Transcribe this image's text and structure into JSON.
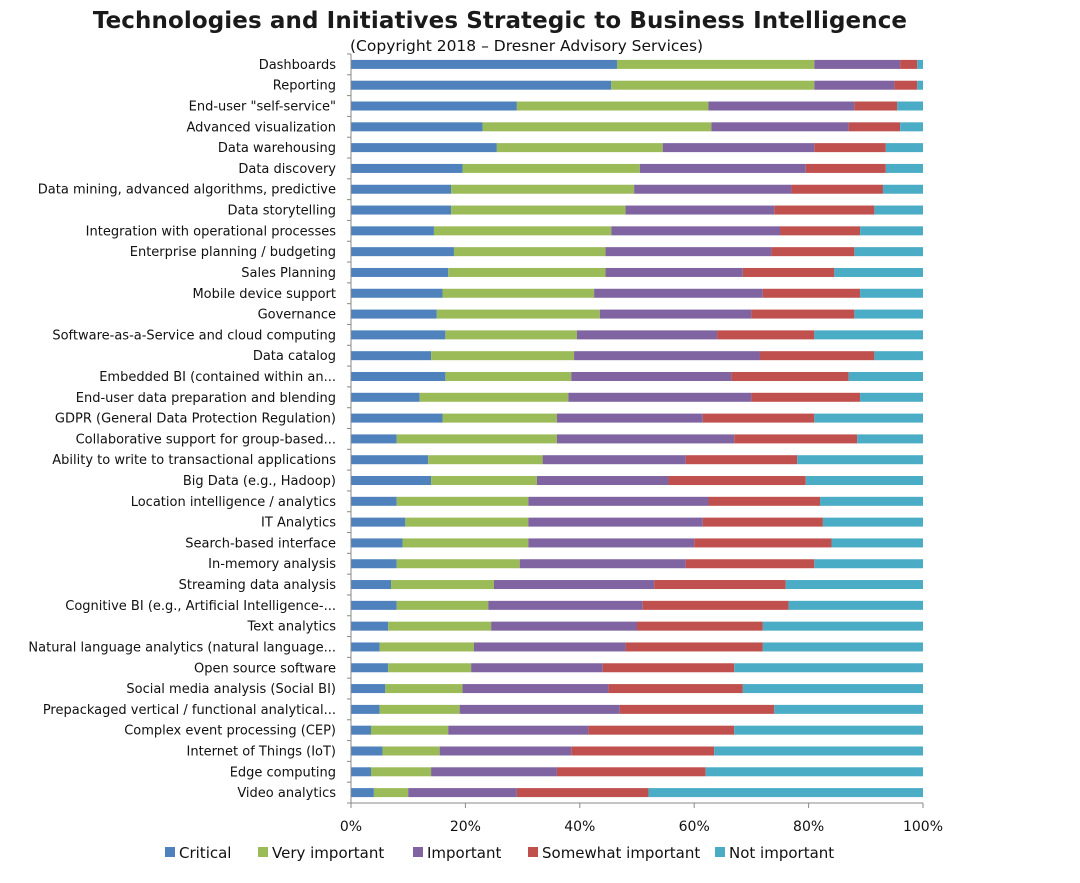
{
  "title": "Technologies and Initiatives Strategic to Business Intelligence",
  "subtitle": "(Copyright 2018 – Dresner Advisory Services)",
  "chart_data": {
    "type": "bar",
    "orientation": "horizontal",
    "stacked": "percent",
    "xlim": [
      0,
      100
    ],
    "x_ticks": [
      "0%",
      "20%",
      "40%",
      "60%",
      "80%",
      "100%"
    ],
    "grid": false,
    "legend_position": "bottom",
    "categories": [
      "Dashboards",
      "Reporting",
      "End-user \"self-service\"",
      "Advanced visualization",
      "Data warehousing",
      "Data discovery",
      "Data mining, advanced algorithms, predictive",
      "Data storytelling",
      "Integration with operational processes",
      "Enterprise planning / budgeting",
      "Sales Planning",
      "Mobile device support",
      "Governance",
      "Software-as-a-Service and cloud computing",
      "Data catalog",
      "Embedded BI (contained within an...",
      "End-user data preparation and blending",
      "GDPR (General Data Protection Regulation)",
      "Collaborative support for group-based...",
      "Ability to write to transactional applications",
      "Big Data (e.g., Hadoop)",
      "Location intelligence / analytics",
      "IT Analytics",
      "Search-based interface",
      "In-memory analysis",
      "Streaming data analysis",
      "Cognitive BI (e.g., Artificial Intelligence-...",
      "Text analytics",
      "Natural language analytics (natural language...",
      "Open source software",
      "Social media analysis (Social BI)",
      "Prepackaged vertical / functional analytical...",
      "Complex event processing (CEP)",
      "Internet of Things (IoT)",
      "Edge computing",
      "Video analytics"
    ],
    "series": [
      {
        "name": "Critical",
        "color": "#4f81bd",
        "values": [
          46.5,
          45.5,
          29.0,
          23.0,
          25.5,
          19.5,
          17.5,
          17.5,
          14.5,
          18.0,
          17.0,
          16.0,
          15.0,
          16.5,
          14.0,
          16.5,
          12.0,
          16.0,
          8.0,
          13.5,
          14.0,
          8.0,
          9.5,
          9.0,
          8.0,
          7.0,
          8.0,
          6.5,
          5.0,
          6.5,
          6.0,
          5.0,
          3.5,
          5.5,
          3.5,
          4.0
        ]
      },
      {
        "name": "Very important",
        "color": "#9bbb59",
        "values": [
          34.5,
          35.5,
          33.5,
          40.0,
          29.0,
          31.0,
          32.0,
          30.5,
          31.0,
          26.5,
          27.5,
          26.5,
          28.5,
          23.0,
          25.0,
          22.0,
          26.0,
          20.0,
          28.0,
          20.0,
          18.5,
          23.0,
          21.5,
          22.0,
          21.5,
          18.0,
          16.0,
          18.0,
          16.5,
          14.5,
          13.5,
          14.0,
          13.5,
          10.0,
          10.5,
          6.0
        ]
      },
      {
        "name": "Important",
        "color": "#8064a2",
        "values": [
          15.0,
          14.0,
          25.5,
          24.0,
          26.5,
          29.0,
          27.5,
          26.0,
          29.5,
          29.0,
          24.0,
          29.5,
          26.5,
          24.5,
          32.5,
          28.0,
          32.0,
          25.5,
          31.0,
          25.0,
          23.0,
          31.5,
          30.5,
          29.0,
          29.0,
          28.0,
          27.0,
          25.5,
          26.5,
          23.0,
          25.5,
          28.0,
          24.5,
          23.0,
          22.0,
          19.0
        ]
      },
      {
        "name": "Somewhat important",
        "color": "#c0504d",
        "values": [
          3.0,
          4.0,
          7.5,
          9.0,
          12.5,
          14.0,
          16.0,
          17.5,
          14.0,
          14.5,
          16.0,
          17.0,
          18.0,
          17.0,
          20.0,
          20.5,
          19.0,
          19.5,
          21.5,
          19.5,
          24.0,
          19.5,
          21.0,
          24.0,
          22.5,
          23.0,
          25.5,
          22.0,
          24.0,
          23.0,
          23.5,
          27.0,
          25.5,
          25.0,
          26.0,
          23.0
        ]
      },
      {
        "name": "Not important",
        "color": "#4bacc6",
        "values": [
          1.0,
          1.0,
          4.5,
          4.0,
          6.5,
          6.5,
          7.0,
          8.5,
          11.0,
          12.0,
          15.5,
          11.0,
          12.0,
          19.0,
          8.5,
          13.0,
          11.0,
          19.0,
          11.5,
          22.0,
          20.5,
          18.0,
          17.5,
          16.0,
          19.0,
          24.0,
          23.5,
          28.0,
          28.0,
          33.0,
          31.5,
          26.0,
          33.0,
          36.5,
          38.0,
          48.0
        ]
      }
    ]
  }
}
